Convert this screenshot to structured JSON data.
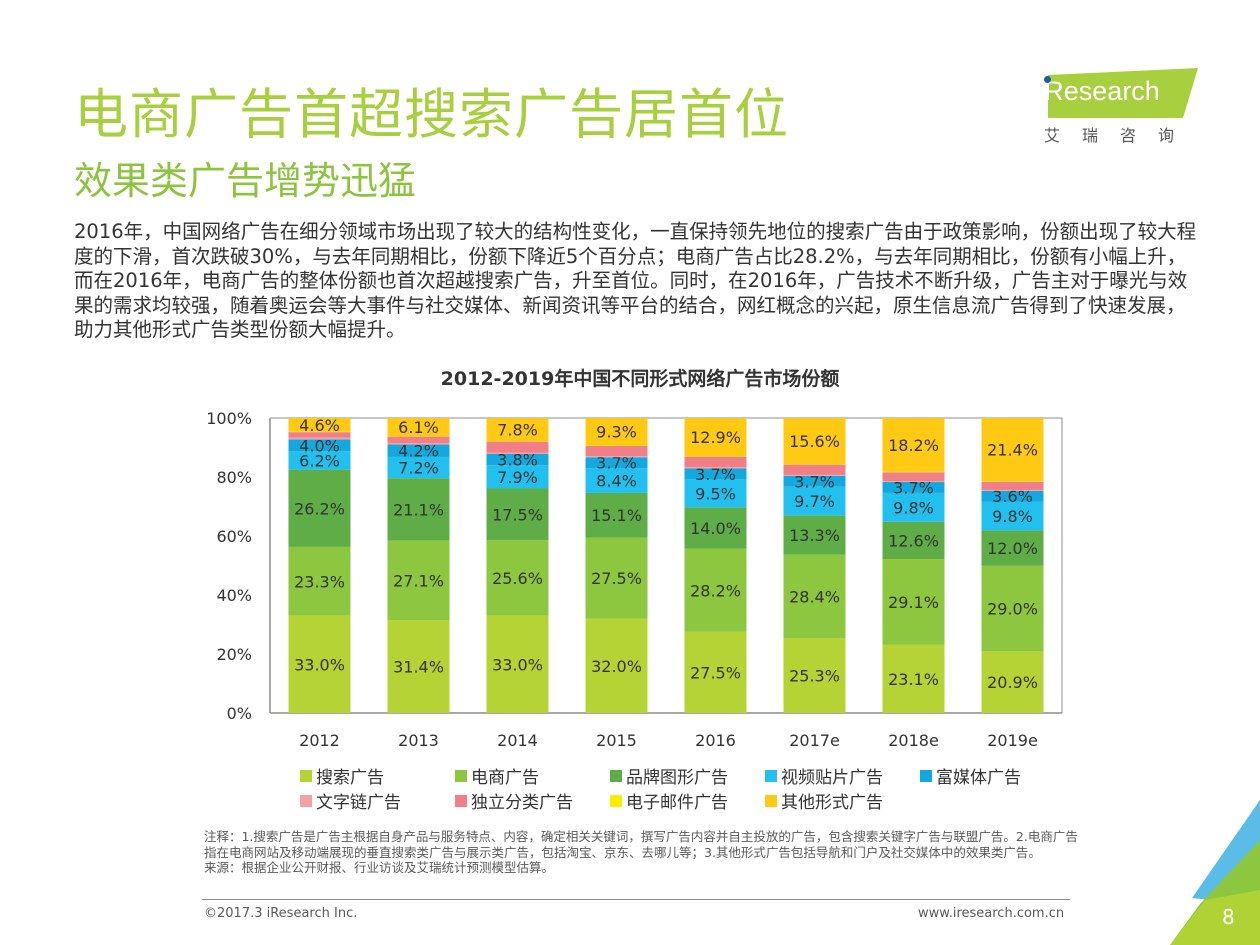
{
  "header": {
    "title": "电商广告首超搜索广告居首位",
    "subtitle": "效果类广告增势迅猛"
  },
  "logo": {
    "name": "iResearch",
    "word": "Research",
    "chinese": "艾瑞咨询"
  },
  "body_paragraph": "2016年，中国网络广告在细分领域市场出现了较大的结构性变化，一直保持领先地位的搜索广告由于政策影响，份额出现了较大程度的下滑，首次跌破30%，与去年同期相比，份额下降近5个百分点；电商广告占比28.2%，与去年同期相比，份额有小幅上升，而在2016年，电商广告的整体份额也首次超越搜索广告，升至首位。同时，在2016年，广告技术不断升级，广告主对于曝光与效果的需求均较强，随着奥运会等大事件与社交媒体、新闻资讯等平台的结合，网红概念的兴起，原生信息流广告得到了快速发展，助力其他形式广告类型份额大幅提升。",
  "chart_data": {
    "type": "bar",
    "stacked": true,
    "title": "2012-2019年中国不同形式网络广告市场份额",
    "xlabel": "",
    "ylabel": "",
    "ylim": [
      0,
      100
    ],
    "yticks": [
      "0%",
      "20%",
      "40%",
      "60%",
      "80%",
      "100%"
    ],
    "categories": [
      "2012",
      "2013",
      "2014",
      "2015",
      "2016",
      "2017e",
      "2018e",
      "2019e"
    ],
    "series": [
      {
        "name": "搜索广告",
        "color": "#b5d334",
        "labeled": true,
        "values": [
          33.0,
          31.4,
          33.0,
          32.0,
          27.5,
          25.3,
          23.1,
          20.9
        ]
      },
      {
        "name": "电商广告",
        "color": "#8dc63f",
        "labeled": true,
        "values": [
          23.3,
          27.1,
          25.6,
          27.5,
          28.2,
          28.4,
          29.1,
          29.0
        ]
      },
      {
        "name": "品牌图形广告",
        "color": "#5fad46",
        "labeled": true,
        "values": [
          26.2,
          21.1,
          17.5,
          15.1,
          14.0,
          13.3,
          12.6,
          12.0
        ]
      },
      {
        "name": "视频贴片广告",
        "color": "#22c0ef",
        "labeled": true,
        "values": [
          6.2,
          7.2,
          7.9,
          8.4,
          9.5,
          9.7,
          9.8,
          9.8
        ]
      },
      {
        "name": "富媒体广告",
        "color": "#13a9de",
        "labeled": true,
        "values": [
          4.0,
          4.2,
          3.8,
          3.7,
          3.7,
          3.7,
          3.7,
          3.6
        ]
      },
      {
        "name": "文字链广告",
        "color": "#f4a1a6",
        "labeled": false,
        "values": [
          0.6,
          0.5,
          0.4,
          0.4,
          0.4,
          0.3,
          0.3,
          0.3
        ]
      },
      {
        "name": "独立分类广告",
        "color": "#f07f87",
        "labeled": false,
        "values": [
          1.9,
          2.2,
          3.8,
          3.4,
          3.6,
          3.5,
          3.0,
          2.8
        ]
      },
      {
        "name": "电子邮件广告",
        "color": "#ffed00",
        "labeled": false,
        "values": [
          0.2,
          0.2,
          0.2,
          0.2,
          0.2,
          0.2,
          0.2,
          0.2
        ]
      },
      {
        "name": "其他形式广告",
        "color": "#ffc914",
        "labeled": true,
        "values": [
          4.6,
          6.1,
          7.8,
          9.3,
          12.9,
          15.6,
          18.2,
          21.4
        ]
      }
    ],
    "legend": {
      "placement": "bottom",
      "order": [
        "搜索广告",
        "电商广告",
        "品牌图形广告",
        "视频贴片广告",
        "富媒体广告",
        "文字链广告",
        "独立分类广告",
        "电子邮件广告",
        "其他形式广告"
      ]
    },
    "grid": false
  },
  "notes": {
    "line1": "注释：1.搜索广告是广告主根据自身产品与服务特点、内容，确定相关关键词，撰写广告内容并自主投放的广告，包含搜索关键字广告与联盟广告。2.电商广告指在电商网站及移动端展现的垂直搜索类广告与展示类广告，包括淘宝、京东、去哪儿等；3.其他形式广告包括导航和门户及社交媒体中的效果类广告。",
    "source": "来源：根据企业公开财报、行业访谈及艾瑞统计预测模型估算。"
  },
  "footer": {
    "copyright": "©2017.3 iResearch Inc.",
    "website": "www.iresearch.com.cn",
    "page_number": "8"
  }
}
